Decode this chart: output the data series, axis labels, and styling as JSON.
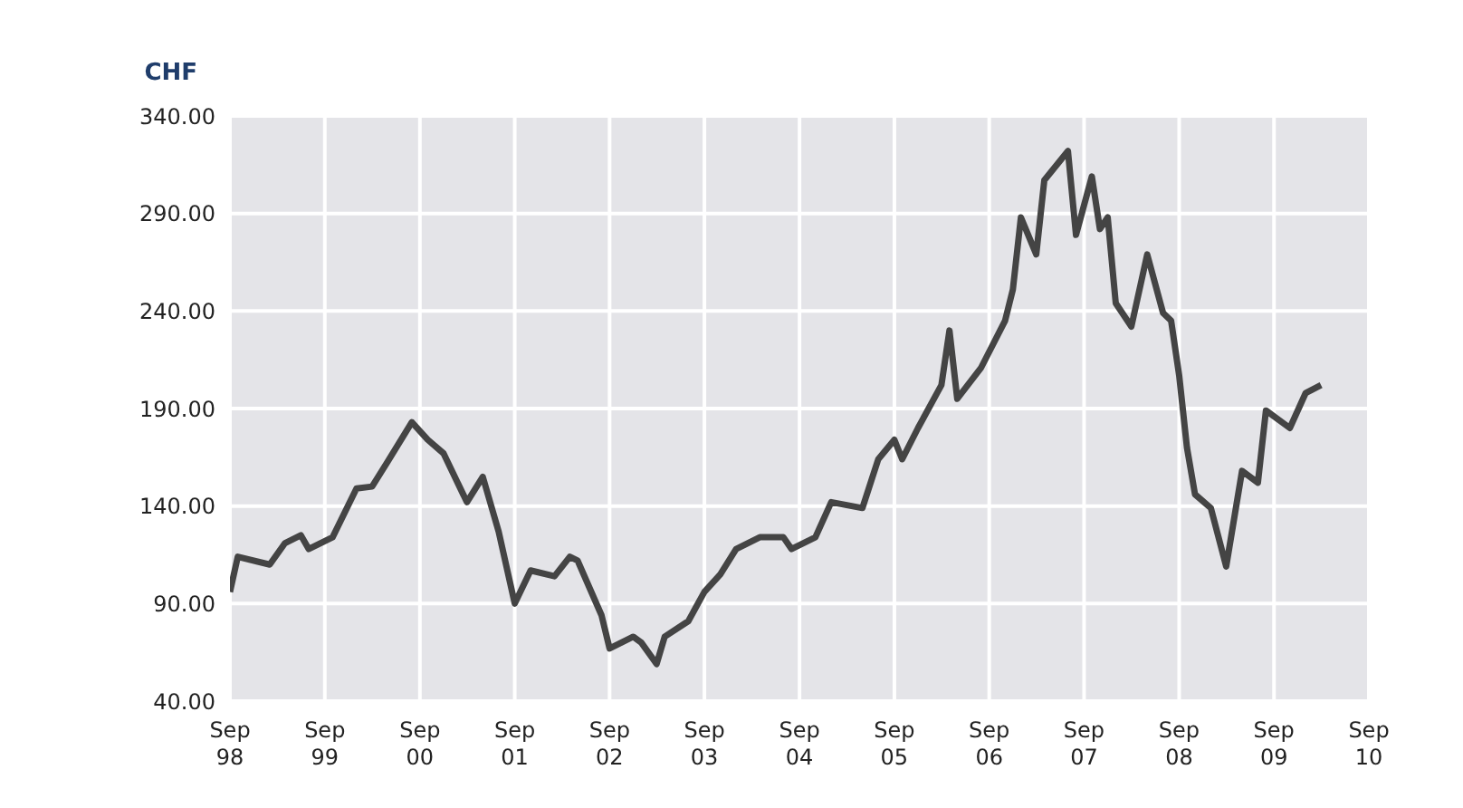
{
  "chart_data": {
    "type": "line",
    "ylabel": "CHF",
    "grid": true,
    "legend": false,
    "marker": "none",
    "line_style": "solid",
    "xlim": [
      "1998-09",
      "2010-09"
    ],
    "xticks": [
      {
        "value": "1998-09",
        "label": "Sep 98"
      },
      {
        "value": "1999-09",
        "label": "Sep 99"
      },
      {
        "value": "2000-09",
        "label": "Sep 00"
      },
      {
        "value": "2001-09",
        "label": "Sep 01"
      },
      {
        "value": "2002-09",
        "label": "Sep 02"
      },
      {
        "value": "2003-09",
        "label": "Sep 03"
      },
      {
        "value": "2004-09",
        "label": "Sep 04"
      },
      {
        "value": "2005-09",
        "label": "Sep 05"
      },
      {
        "value": "2006-09",
        "label": "Sep 06"
      },
      {
        "value": "2007-09",
        "label": "Sep 07"
      },
      {
        "value": "2008-09",
        "label": "Sep 08"
      },
      {
        "value": "2009-09",
        "label": "Sep 09"
      },
      {
        "value": "2010-09",
        "label": "Sep 10"
      }
    ],
    "ylim": [
      40,
      340
    ],
    "yticks": [
      {
        "value": 40,
        "label": "40.00"
      },
      {
        "value": 90,
        "label": "90.00"
      },
      {
        "value": 140,
        "label": "140.00"
      },
      {
        "value": 190,
        "label": "190.00"
      },
      {
        "value": 240,
        "label": "240.00"
      },
      {
        "value": 290,
        "label": "290.00"
      },
      {
        "value": 340,
        "label": "340.00"
      }
    ],
    "x": [
      "1998-09",
      "1998-10",
      "1999-02",
      "1999-04",
      "1999-06",
      "1999-07",
      "1999-10",
      "2000-01",
      "2000-03",
      "2000-05",
      "2000-08",
      "2000-10",
      "2000-12",
      "2001-03",
      "2001-05",
      "2001-07",
      "2001-09",
      "2001-11",
      "2002-02",
      "2002-04",
      "2002-05",
      "2002-08",
      "2002-09",
      "2002-12",
      "2003-01",
      "2003-03",
      "2003-04",
      "2003-07",
      "2003-09",
      "2003-11",
      "2004-01",
      "2004-04",
      "2004-07",
      "2004-08",
      "2004-11",
      "2005-01",
      "2005-05",
      "2005-07",
      "2005-09",
      "2005-10",
      "2005-12",
      "2006-03",
      "2006-04",
      "2006-05",
      "2006-08",
      "2006-11",
      "2006-12",
      "2007-01",
      "2007-03",
      "2007-04",
      "2007-07",
      "2007-08",
      "2007-10",
      "2007-11",
      "2007-12",
      "2008-01",
      "2008-03",
      "2008-05",
      "2008-07",
      "2008-08",
      "2008-09",
      "2008-10",
      "2008-11",
      "2009-01",
      "2009-03",
      "2009-05",
      "2009-07",
      "2009-08",
      "2009-11",
      "2010-01",
      "2010-03"
    ],
    "series": [
      {
        "color": "#444444",
        "values": [
          96,
          114,
          110,
          121,
          125,
          118,
          124,
          149,
          150,
          163,
          183,
          174,
          167,
          142,
          155,
          127,
          90,
          107,
          104,
          114,
          112,
          84,
          67,
          73,
          70,
          59,
          73,
          81,
          96,
          105,
          118,
          124,
          124,
          118,
          124,
          142,
          139,
          164,
          174,
          164,
          180,
          202,
          230,
          195,
          211,
          235,
          251,
          288,
          269,
          307,
          322,
          279,
          309,
          282,
          288,
          244,
          232,
          269,
          239,
          235,
          207,
          170,
          146,
          139,
          109,
          158,
          152,
          189,
          180,
          198,
          202
        ]
      }
    ]
  }
}
